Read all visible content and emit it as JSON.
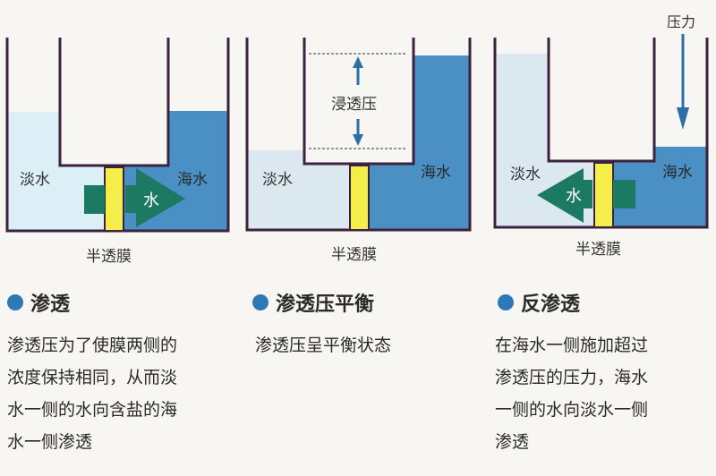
{
  "colors": {
    "fresh_water": "#dceef6",
    "fresh_water_2": "#dbe8f0",
    "sea_water": "#4a90c4",
    "membrane": "#f5ee4a",
    "arrow": "#1d7a62",
    "wall": "#3b2340",
    "accent_dot": "#2f78b8"
  },
  "labels": {
    "fresh": "淡水",
    "sea": "海水",
    "water": "水",
    "membrane": "半透膜",
    "osmotic_pressure": "浸透压",
    "pressure": "压力"
  },
  "sections": [
    {
      "title": "渗透",
      "lines": [
        "渗透压为了使膜两侧的",
        "浓度保持相同，从而淡",
        "水一侧的水向含盐的海",
        "水一侧渗透"
      ]
    },
    {
      "title": "渗透压平衡",
      "lines": [
        "渗透压呈平衡状态"
      ]
    },
    {
      "title": "反渗透",
      "lines": [
        "在海水一侧施加超过",
        "渗透压的压力，海水",
        "一侧的水向淡水一侧",
        "渗透"
      ]
    }
  ]
}
